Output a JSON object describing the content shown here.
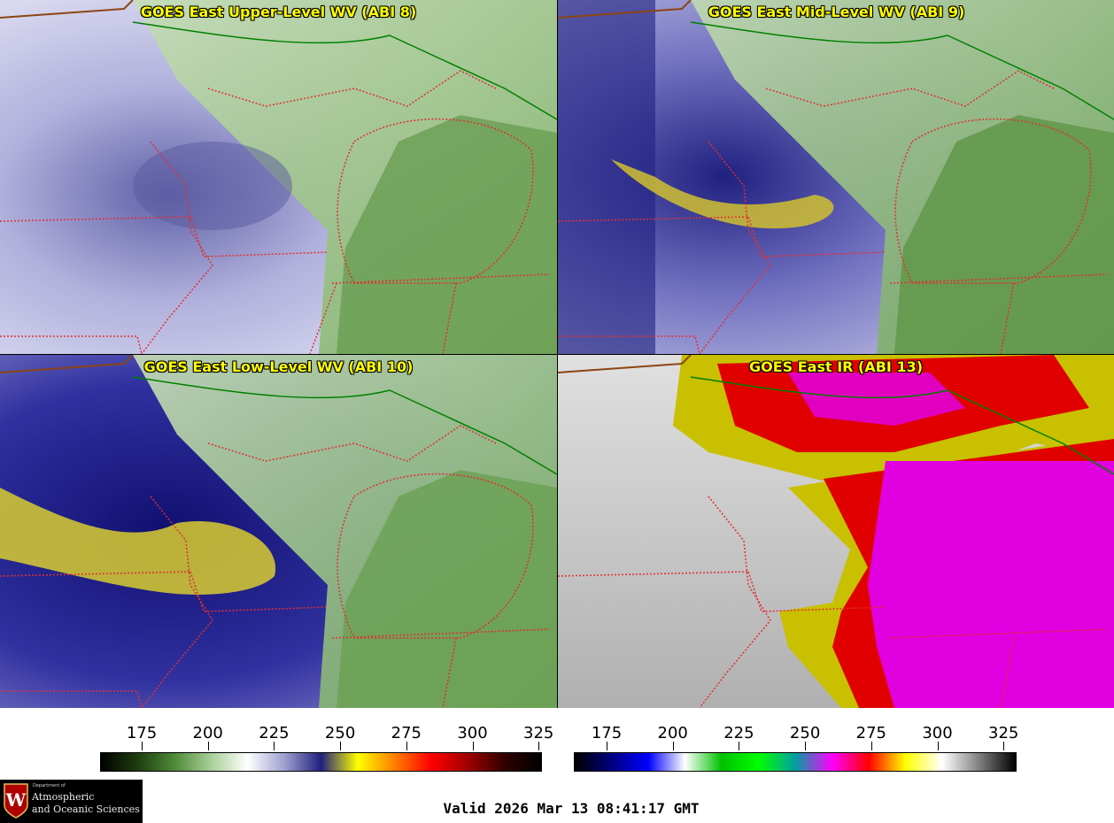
{
  "panels": [
    {
      "title": "GOES East Upper-Level WV (ABI 8)",
      "kind": "wv_upper"
    },
    {
      "title": "GOES East Mid-Level WV (ABI 9)",
      "kind": "wv_mid"
    },
    {
      "title": "GOES East Low-Level WV (ABI 10)",
      "kind": "wv_low"
    },
    {
      "title": "GOES East IR (ABI 13)",
      "kind": "ir"
    }
  ],
  "colorbars": [
    {
      "name": "wv",
      "ticks": [
        "175",
        "200",
        "225",
        "250",
        "275",
        "300",
        "325"
      ],
      "stops": [
        "#000000",
        "#1e3d10",
        "#4e8a38",
        "#a8cf98",
        "#ffffff",
        "#a0a0d0",
        "#202080",
        "#ffff00",
        "#ff8000",
        "#ff0000",
        "#a00000",
        "#300000",
        "#000000"
      ]
    },
    {
      "name": "ir",
      "ticks": [
        "175",
        "200",
        "225",
        "250",
        "275",
        "300",
        "325"
      ],
      "stops": [
        "#000000",
        "#000080",
        "#0000ff",
        "#ffffff",
        "#00c000",
        "#00ff00",
        "#00a0a0",
        "#ff00ff",
        "#ff0000",
        "#ffff00",
        "#ffffff",
        "#808080",
        "#000000"
      ]
    }
  ],
  "logo": {
    "line1": "Department of",
    "line2": "Atmospheric",
    "line3": "and Oceanic Sciences",
    "seal_letter": "W"
  },
  "valid_text": "Valid 2026 Mar 13 08:41:17 GMT",
  "colors": {
    "title": "#ffff00",
    "state_border": "#e03030",
    "country_border": "#008000"
  }
}
